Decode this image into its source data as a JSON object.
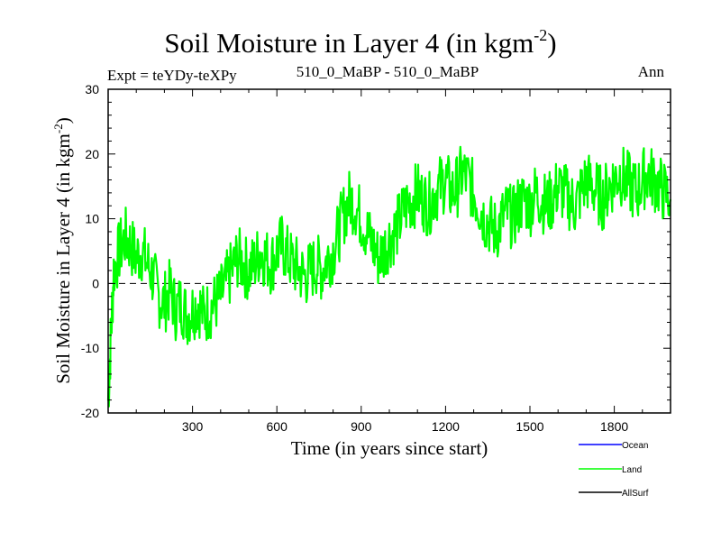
{
  "chart_data": {
    "type": "line",
    "title": "Soil Moisture in Layer 4 (in kgm",
    "title_sup": "-2",
    "title_close": ")",
    "expt_label": "Expt = teYDy-teXPy",
    "subtitle": "510_0_MaBP - 510_0_MaBP",
    "period_label": "Ann",
    "xlabel": "Time (in years since start)",
    "ylabel": "Soil Moisture in Layer 4 (in kgm",
    "ylabel_sup": "-2",
    "ylabel_close": ")",
    "xlim": [
      0,
      2000
    ],
    "ylim": [
      -20,
      30
    ],
    "x_ticks": [
      300,
      600,
      900,
      1200,
      1500,
      1800
    ],
    "y_ticks": [
      -20,
      -10,
      0,
      10,
      20,
      30
    ],
    "reference_line": {
      "y": 0,
      "style": "dashed"
    },
    "series": [
      {
        "name": "Ocean",
        "color": "#0000ff",
        "values": []
      },
      {
        "name": "Land",
        "color": "#00ff00",
        "x": [
          0,
          10,
          20,
          40,
          60,
          80,
          100,
          120,
          140,
          160,
          180,
          200,
          220,
          240,
          260,
          280,
          300,
          320,
          340,
          360,
          380,
          400,
          420,
          440,
          460,
          480,
          500,
          520,
          540,
          560,
          580,
          600,
          620,
          640,
          660,
          680,
          700,
          720,
          740,
          760,
          780,
          800,
          820,
          840,
          860,
          880,
          900,
          920,
          940,
          960,
          980,
          1000,
          1020,
          1040,
          1060,
          1080,
          1100,
          1120,
          1140,
          1160,
          1180,
          1200,
          1220,
          1240,
          1260,
          1280,
          1300,
          1320,
          1340,
          1360,
          1380,
          1400,
          1420,
          1440,
          1460,
          1480,
          1500,
          1520,
          1540,
          1560,
          1580,
          1600,
          1620,
          1640,
          1660,
          1680,
          1700,
          1720,
          1740,
          1760,
          1780,
          1800,
          1820,
          1840,
          1860,
          1880,
          1900,
          1920,
          1940,
          1960,
          1980,
          2000
        ],
        "values": [
          -18,
          -8,
          2,
          5,
          7,
          6,
          4,
          5,
          3,
          1,
          -2,
          -3,
          -1,
          -4,
          -3,
          -5,
          -4,
          -3,
          -5,
          -4,
          -3,
          -2,
          0,
          2,
          4,
          3,
          2,
          3,
          5,
          4,
          3,
          5,
          6,
          4,
          3,
          2,
          1,
          2,
          3,
          2,
          4,
          5,
          8,
          11,
          13,
          12,
          10,
          8,
          6,
          4,
          5,
          7,
          8,
          10,
          12,
          13,
          14,
          13,
          12,
          14,
          15,
          16,
          14,
          15,
          17,
          16,
          14,
          12,
          10,
          9,
          8,
          10,
          11,
          10,
          12,
          13,
          12,
          14,
          13,
          12,
          13,
          15,
          14,
          13,
          12,
          14,
          16,
          15,
          14,
          13,
          15,
          16,
          17,
          16,
          15,
          14,
          16,
          17,
          16,
          15,
          14,
          13
        ]
      },
      {
        "name": "AllSurf",
        "color": "#000000",
        "values": []
      }
    ],
    "legend": [
      "Ocean",
      "Land",
      "AllSurf"
    ],
    "legend_position": "bottom-right"
  }
}
